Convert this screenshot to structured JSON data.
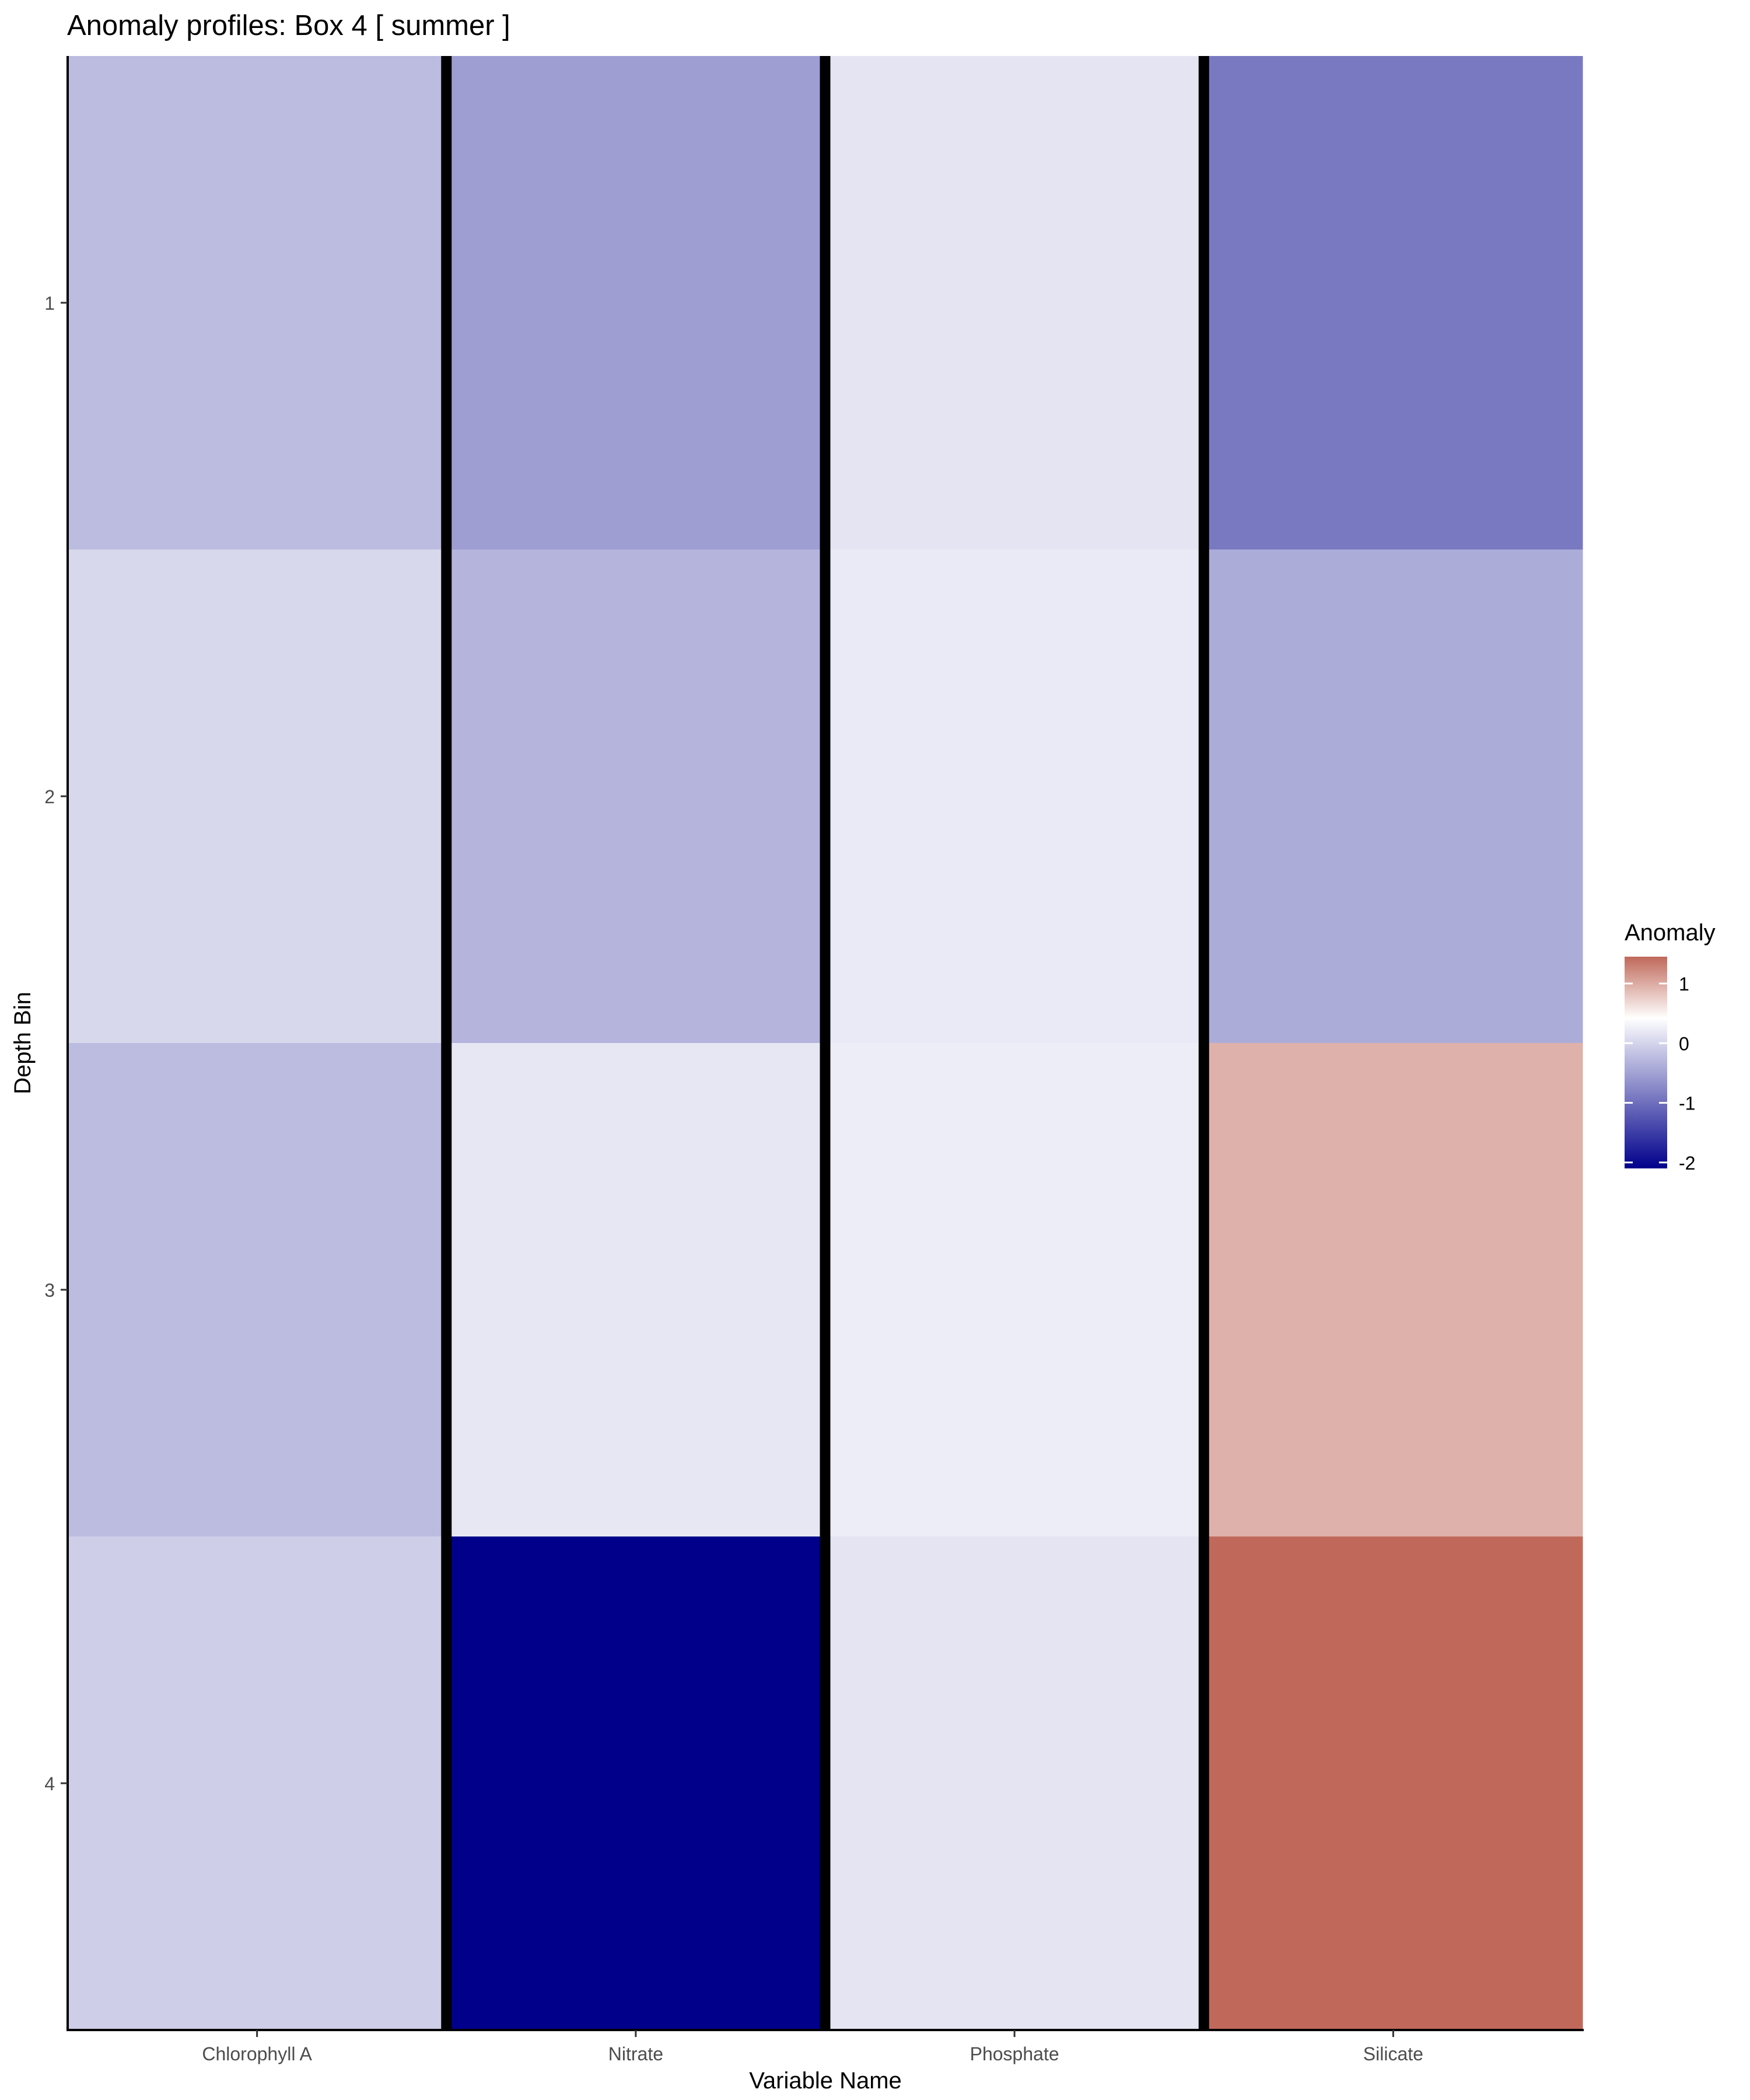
{
  "chart_data": {
    "type": "heatmap",
    "title": "Anomaly profiles: Box 4 [ summer ]",
    "xlabel": "Variable Name",
    "ylabel": "Depth Bin",
    "x_categories": [
      "Chlorophyll A",
      "Nitrate",
      "Phosphate",
      "Silicate"
    ],
    "y_categories": [
      "1",
      "2",
      "3",
      "4"
    ],
    "values": [
      [
        -0.55,
        -0.8,
        -0.22,
        -1.1
      ],
      [
        -0.32,
        -0.62,
        -0.17,
        -0.68
      ],
      [
        -0.55,
        -0.2,
        -0.15,
        0.75
      ],
      [
        -0.4,
        -2.1,
        -0.22,
        1.45
      ]
    ],
    "value_layout": "rows = depth bins 1..4, columns = variables",
    "legend": {
      "title": "Anomaly",
      "ticks": [
        1,
        0,
        -1,
        -2
      ],
      "tick_labels": [
        "1",
        "0",
        "-1",
        "-2"
      ],
      "range": [
        -2.1,
        1.45
      ],
      "placement": "right"
    },
    "colors": {
      "low": "#00008B",
      "mid": "#FFFFFF",
      "high": "#C0695A",
      "separator": "#000000"
    },
    "grid": false
  }
}
